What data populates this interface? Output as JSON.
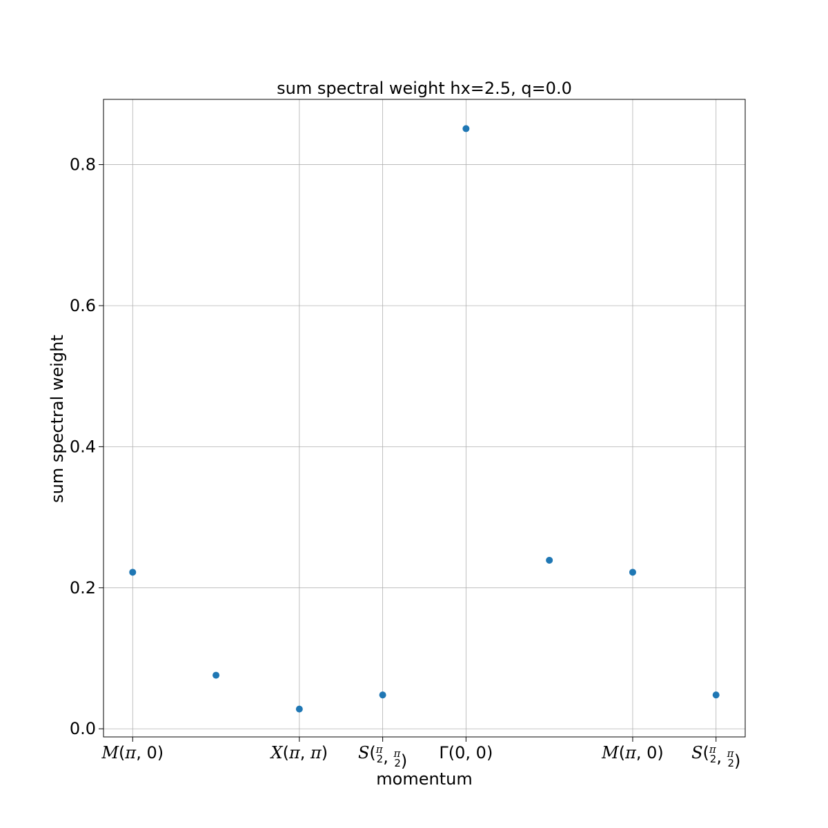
{
  "chart_data": {
    "type": "scatter",
    "title": "sum spectral weight hx=2.5, q=0.0",
    "xlabel": "momentum",
    "ylabel": "sum spectral weight",
    "xlim": [
      -0.35,
      7.35
    ],
    "ylim": [
      -0.0115,
      0.8925
    ],
    "grid": true,
    "marker_color": "#1f77b4",
    "x_ticks": [
      {
        "x": 0,
        "parts": [
          [
            "M",
            "i"
          ],
          [
            "(",
            "r"
          ],
          [
            "π",
            "i"
          ],
          [
            ", 0)",
            "r"
          ]
        ]
      },
      {
        "x": 2,
        "parts": [
          [
            "X",
            "i"
          ],
          [
            "(",
            "r"
          ],
          [
            "π",
            "i"
          ],
          [
            ", ",
            "r"
          ],
          [
            "π",
            "i"
          ],
          [
            ")",
            "r"
          ]
        ]
      },
      {
        "x": 3,
        "parts": [
          [
            "S",
            "i"
          ],
          [
            "(",
            "r"
          ],
          [
            "π/2",
            "f"
          ],
          [
            ", ",
            "r"
          ],
          [
            "π/2",
            "f"
          ],
          [
            ")",
            "r"
          ]
        ]
      },
      {
        "x": 4,
        "parts": [
          [
            "Γ(0, 0)",
            "r"
          ]
        ]
      },
      {
        "x": 6,
        "parts": [
          [
            "M",
            "i"
          ],
          [
            "(",
            "r"
          ],
          [
            "π",
            "i"
          ],
          [
            ", 0)",
            "r"
          ]
        ]
      },
      {
        "x": 7,
        "parts": [
          [
            "S",
            "i"
          ],
          [
            "(",
            "r"
          ],
          [
            "π/2",
            "f"
          ],
          [
            ", ",
            "r"
          ],
          [
            "π/2",
            "f"
          ],
          [
            ")",
            "r"
          ]
        ]
      }
    ],
    "y_ticks": [
      {
        "y": 0.0,
        "label": "0.0"
      },
      {
        "y": 0.2,
        "label": "0.2"
      },
      {
        "y": 0.4,
        "label": "0.4"
      },
      {
        "y": 0.6,
        "label": "0.6"
      },
      {
        "y": 0.8,
        "label": "0.8"
      }
    ],
    "x": [
      0,
      1,
      2,
      3,
      4,
      5,
      6,
      7
    ],
    "y": [
      0.222,
      0.076,
      0.028,
      0.048,
      0.851,
      0.239,
      0.222,
      0.048
    ]
  }
}
